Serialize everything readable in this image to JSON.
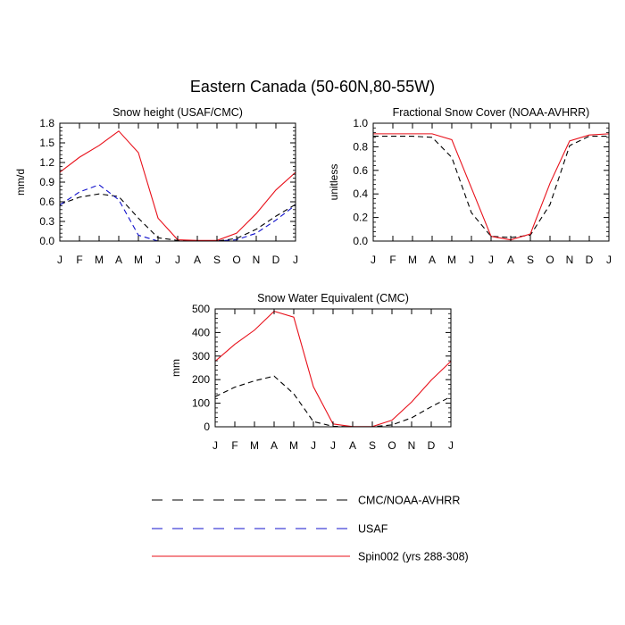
{
  "figure": {
    "title": "Eastern Canada (50-60N,80-55W)"
  },
  "legend": {
    "entries": [
      {
        "label": "CMC/NOAA-AVHRR",
        "color": "#000000",
        "dash": "dashed"
      },
      {
        "label": "USAF",
        "color": "#1010cc",
        "dash": "dashed"
      },
      {
        "label": "Spin002 (yrs 288-308)",
        "color": "#e8101a",
        "dash": "solid"
      }
    ]
  },
  "chart_data": [
    {
      "type": "line",
      "title": "Snow height (USAF/CMC)",
      "xlabel": "",
      "ylabel": "mm/d",
      "categories": [
        "J",
        "F",
        "M",
        "A",
        "M",
        "J",
        "J",
        "A",
        "S",
        "O",
        "N",
        "D",
        "J"
      ],
      "ylim": [
        0,
        1.8
      ],
      "yticks": [
        0.0,
        0.3,
        0.6,
        0.9,
        1.2,
        1.5,
        1.8
      ],
      "ytick_labels": [
        "0.0",
        "0.3",
        "0.6",
        "0.9",
        "1.2",
        "1.5",
        "1.8"
      ],
      "grid": false,
      "series": [
        {
          "name": "CMC/NOAA-AVHRR",
          "color": "#000000",
          "dash": "dashed",
          "values": [
            0.56,
            0.67,
            0.72,
            0.68,
            0.35,
            0.05,
            0.01,
            0.0,
            0.0,
            0.04,
            0.18,
            0.38,
            0.56
          ]
        },
        {
          "name": "USAF",
          "color": "#1010cc",
          "dash": "dashed",
          "values": [
            0.55,
            0.75,
            0.86,
            0.63,
            0.09,
            0.0,
            0.0,
            0.0,
            0.0,
            0.02,
            0.12,
            0.32,
            0.55
          ]
        },
        {
          "name": "Spin002 (yrs 288-308)",
          "color": "#e8101a",
          "dash": "solid",
          "values": [
            1.05,
            1.28,
            1.46,
            1.68,
            1.35,
            0.35,
            0.02,
            0.01,
            0.01,
            0.12,
            0.42,
            0.78,
            1.05
          ]
        }
      ]
    },
    {
      "type": "line",
      "title": "Fractional Snow Cover (NOAA-AVHRR)",
      "xlabel": "",
      "ylabel": "unitless",
      "categories": [
        "J",
        "F",
        "M",
        "A",
        "M",
        "J",
        "J",
        "A",
        "S",
        "O",
        "N",
        "D",
        "J"
      ],
      "ylim": [
        0,
        1.0
      ],
      "yticks": [
        0.0,
        0.2,
        0.4,
        0.6,
        0.8,
        1.0
      ],
      "ytick_labels": [
        "0.0",
        "0.2",
        "0.4",
        "0.6",
        "0.8",
        "1.0"
      ],
      "grid": false,
      "series": [
        {
          "name": "CMC/NOAA-AVHRR",
          "color": "#000000",
          "dash": "dashed",
          "values": [
            0.89,
            0.89,
            0.89,
            0.88,
            0.71,
            0.24,
            0.04,
            0.03,
            0.05,
            0.31,
            0.81,
            0.89,
            0.89
          ]
        },
        {
          "name": "Spin002 (yrs 288-308)",
          "color": "#e8101a",
          "dash": "solid",
          "values": [
            0.91,
            0.91,
            0.91,
            0.91,
            0.86,
            0.45,
            0.04,
            0.01,
            0.06,
            0.49,
            0.85,
            0.9,
            0.91
          ]
        }
      ]
    },
    {
      "type": "line",
      "title": "Snow Water Equivalent (CMC)",
      "xlabel": "",
      "ylabel": "mm",
      "categories": [
        "J",
        "F",
        "M",
        "A",
        "M",
        "J",
        "J",
        "A",
        "S",
        "O",
        "N",
        "D",
        "J"
      ],
      "ylim": [
        0,
        500
      ],
      "yticks": [
        0,
        100,
        200,
        300,
        400,
        500
      ],
      "ytick_labels": [
        "0",
        "100",
        "200",
        "300",
        "400",
        "500"
      ],
      "grid": false,
      "series": [
        {
          "name": "CMC/NOAA-AVHRR",
          "color": "#000000",
          "dash": "dashed",
          "values": [
            128,
            168,
            195,
            215,
            140,
            22,
            2,
            0,
            0,
            8,
            38,
            85,
            128
          ]
        },
        {
          "name": "Spin002 (yrs 288-308)",
          "color": "#e8101a",
          "dash": "solid",
          "values": [
            278,
            350,
            410,
            490,
            465,
            170,
            12,
            1,
            1,
            28,
            105,
            198,
            278
          ]
        }
      ]
    }
  ]
}
